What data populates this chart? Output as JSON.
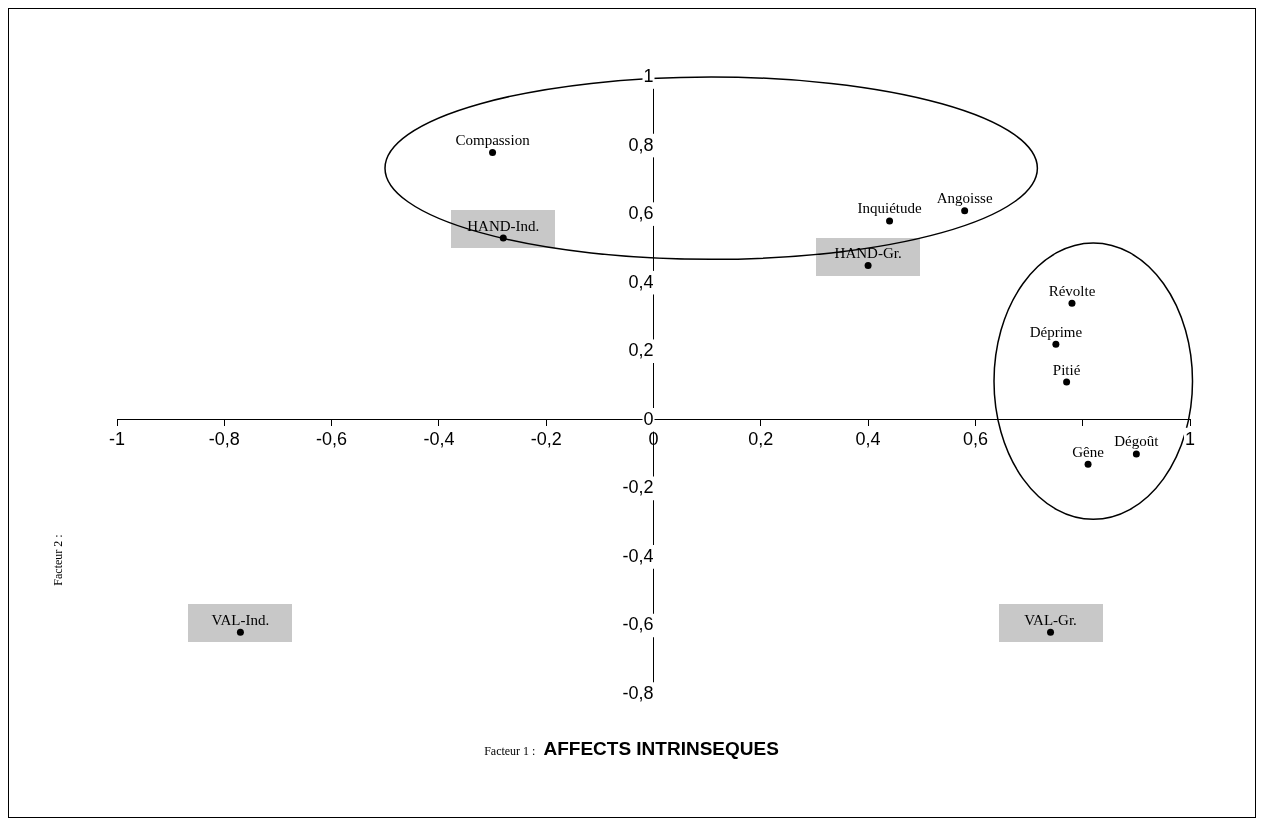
{
  "chart_data": {
    "type": "scatter",
    "xlabel": "Facteur 1 :",
    "ylabel": "Facteur 2 :",
    "annotations": [
      "AFFECTS INTRINSEQUES"
    ],
    "marker": "circle",
    "legend": false,
    "grid": false,
    "xlim": [
      -1,
      1
    ],
    "ylim": [
      -0.8,
      1
    ],
    "xticks": [
      {
        "value": -1,
        "label": "-1"
      },
      {
        "value": -0.8,
        "label": "-0,8"
      },
      {
        "value": -0.6,
        "label": "-0,6"
      },
      {
        "value": -0.4,
        "label": "-0,4"
      },
      {
        "value": -0.2,
        "label": "-0,2"
      },
      {
        "value": 0,
        "label": "0"
      },
      {
        "value": 0.2,
        "label": "0,2"
      },
      {
        "value": 0.4,
        "label": "0,4"
      },
      {
        "value": 0.6,
        "label": "0,6"
      },
      {
        "value": 0.8,
        "label": null
      },
      {
        "value": 1,
        "label": "1"
      }
    ],
    "yticks": [
      {
        "value": -0.8,
        "label": "-0,8"
      },
      {
        "value": -0.6,
        "label": "-0,6"
      },
      {
        "value": -0.4,
        "label": "-0,4"
      },
      {
        "value": -0.2,
        "label": "-0,2"
      },
      {
        "value": 0,
        "label": "0"
      },
      {
        "value": 0.2,
        "label": "0,2"
      },
      {
        "value": 0.4,
        "label": "0,4"
      },
      {
        "value": 0.6,
        "label": "0,6"
      },
      {
        "value": 0.8,
        "label": "0,8"
      },
      {
        "value": 1,
        "label": "1"
      }
    ],
    "series": [
      {
        "name": "Compassion",
        "color": "#000000",
        "x": [
          -0.3
        ],
        "values": [
          0.78
        ]
      },
      {
        "name": "Inquiétude",
        "color": "#000000",
        "x": [
          0.44
        ],
        "values": [
          0.58
        ]
      },
      {
        "name": "Angoisse",
        "color": "#000000",
        "x": [
          0.58
        ],
        "values": [
          0.61
        ]
      },
      {
        "name": "Révolte",
        "color": "#000000",
        "x": [
          0.78
        ],
        "values": [
          0.34
        ]
      },
      {
        "name": "Déprime",
        "color": "#000000",
        "x": [
          0.75
        ],
        "values": [
          0.22
        ]
      },
      {
        "name": "Pitié",
        "color": "#000000",
        "x": [
          0.77
        ],
        "values": [
          0.11
        ]
      },
      {
        "name": "Gêne",
        "color": "#000000",
        "x": [
          0.81
        ],
        "values": [
          -0.13
        ]
      },
      {
        "name": "Dégoût",
        "color": "#000000",
        "x": [
          0.9
        ],
        "values": [
          -0.1
        ]
      },
      {
        "name": "HAND-Ind.",
        "color": "#000000",
        "x": [
          -0.28
        ],
        "values": [
          0.53
        ]
      },
      {
        "name": "HAND-Gr.",
        "color": "#000000",
        "x": [
          0.4
        ],
        "values": [
          0.45
        ]
      },
      {
        "name": "VAL-Ind.",
        "color": "#000000",
        "x": [
          -0.77
        ],
        "values": [
          -0.62
        ]
      },
      {
        "name": "VAL-Gr.",
        "color": "#000000",
        "x": [
          0.74
        ],
        "values": [
          -0.62
        ]
      }
    ]
  }
}
